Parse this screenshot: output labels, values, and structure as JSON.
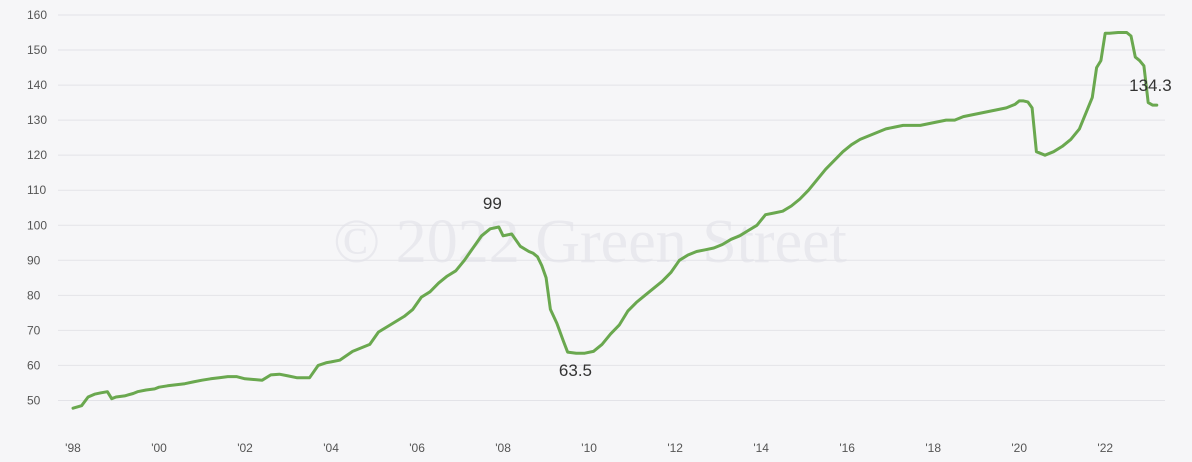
{
  "watermark": "© 2022 Green Street",
  "colors": {
    "line": "#6aa84f",
    "grid": "#e3e3e8",
    "background": "#f6f6f8"
  },
  "chart_data": {
    "type": "line",
    "title": "",
    "xlabel": "",
    "ylabel": "",
    "ylim": [
      45,
      160
    ],
    "xlim": [
      1998.0,
      2023.25
    ],
    "grid": "horizontal",
    "legend": "none",
    "yticks": [
      50,
      60,
      70,
      80,
      90,
      100,
      110,
      120,
      130,
      140,
      150,
      160
    ],
    "xticks": [
      {
        "value": 1998,
        "label": "'98"
      },
      {
        "value": 2000,
        "label": "'00"
      },
      {
        "value": 2002,
        "label": "'02"
      },
      {
        "value": 2004,
        "label": "'04"
      },
      {
        "value": 2006,
        "label": "'06"
      },
      {
        "value": 2008,
        "label": "'08"
      },
      {
        "value": 2010,
        "label": "'10"
      },
      {
        "value": 2012,
        "label": "'12"
      },
      {
        "value": 2014,
        "label": "'14"
      },
      {
        "value": 2016,
        "label": "'16"
      },
      {
        "value": 2018,
        "label": "'18"
      },
      {
        "value": 2020,
        "label": "'20"
      },
      {
        "value": 2022,
        "label": "'22"
      }
    ],
    "series": [
      {
        "x": [
          1998.0,
          1998.2,
          1998.35,
          1998.5,
          1998.65,
          1998.8,
          1998.9,
          1999.0,
          1999.2,
          1999.4,
          1999.5,
          1999.7,
          1999.9,
          2000.0,
          2000.2,
          2000.4,
          2000.6,
          2000.8,
          2001.0,
          2001.2,
          2001.4,
          2001.6,
          2001.8,
          2002.0,
          2002.2,
          2002.4,
          2002.6,
          2002.8,
          2003.0,
          2003.2,
          2003.5,
          2003.7,
          2003.9,
          2004.0,
          2004.2,
          2004.5,
          2004.7,
          2004.9,
          2005.1,
          2005.3,
          2005.5,
          2005.7,
          2005.9,
          2006.1,
          2006.3,
          2006.5,
          2006.7,
          2006.9,
          2007.1,
          2007.3,
          2007.5,
          2007.6,
          2007.7,
          2007.9,
          2008.0,
          2008.2,
          2008.4,
          2008.6,
          2008.7,
          2008.8,
          2008.9,
          2009.0,
          2009.1,
          2009.25,
          2009.4,
          2009.5,
          2009.7,
          2009.9,
          2010.1,
          2010.3,
          2010.5,
          2010.7,
          2010.9,
          2011.1,
          2011.3,
          2011.5,
          2011.7,
          2011.9,
          2012.1,
          2012.3,
          2012.5,
          2012.7,
          2012.9,
          2013.1,
          2013.3,
          2013.5,
          2013.7,
          2013.9,
          2014.1,
          2014.3,
          2014.5,
          2014.7,
          2014.9,
          2015.1,
          2015.3,
          2015.5,
          2015.7,
          2015.9,
          2016.1,
          2016.3,
          2016.5,
          2016.7,
          2016.9,
          2017.1,
          2017.3,
          2017.5,
          2017.7,
          2017.9,
          2018.1,
          2018.3,
          2018.5,
          2018.7,
          2018.9,
          2019.1,
          2019.3,
          2019.5,
          2019.7,
          2019.9,
          2020.0,
          2020.1,
          2020.2,
          2020.3,
          2020.4,
          2020.6,
          2020.8,
          2021.0,
          2021.2,
          2021.4,
          2021.6,
          2021.7,
          2021.8,
          2021.9,
          2022.0,
          2022.1,
          2022.3,
          2022.5,
          2022.6,
          2022.7,
          2022.8,
          2022.9,
          2023.0,
          2023.1,
          2023.2
        ],
        "values": [
          47.8,
          48.5,
          51.0,
          51.8,
          52.2,
          52.5,
          50.5,
          51.0,
          51.3,
          52.0,
          52.5,
          53.0,
          53.3,
          53.8,
          54.2,
          54.5,
          54.8,
          55.3,
          55.8,
          56.2,
          56.5,
          56.8,
          56.8,
          56.2,
          56.0,
          55.8,
          57.3,
          57.5,
          57.0,
          56.5,
          56.5,
          60.0,
          60.8,
          61.0,
          61.5,
          64.0,
          65.0,
          66.0,
          69.5,
          71.0,
          72.5,
          74.0,
          76.0,
          79.5,
          81.0,
          83.5,
          85.5,
          87.0,
          90.0,
          93.5,
          97.0,
          98.0,
          99.0,
          99.5,
          97.0,
          97.5,
          94.0,
          92.5,
          92.0,
          91.0,
          88.5,
          85.0,
          76.0,
          72.0,
          67.0,
          63.8,
          63.5,
          63.5,
          64.0,
          66.0,
          69.0,
          71.5,
          75.5,
          78.0,
          80.0,
          82.0,
          84.0,
          86.5,
          90.0,
          91.5,
          92.5,
          93.0,
          93.5,
          94.5,
          96.0,
          97.0,
          98.5,
          100.0,
          103.0,
          103.5,
          104.0,
          105.5,
          107.5,
          110.0,
          113.0,
          116.0,
          118.5,
          121.0,
          123.0,
          124.5,
          125.5,
          126.5,
          127.5,
          128.0,
          128.5,
          128.5,
          128.5,
          129.0,
          129.5,
          130.0,
          130.0,
          131.0,
          131.5,
          132.0,
          132.5,
          133.0,
          133.5,
          134.5,
          135.5,
          135.5,
          135.2,
          133.5,
          121.0,
          120.0,
          121.0,
          122.5,
          124.5,
          127.5,
          133.5,
          136.5,
          145.0,
          147.0,
          154.8,
          154.8,
          155.0,
          155.0,
          154.0,
          148.0,
          147.0,
          145.5,
          135.0,
          134.3,
          134.3
        ]
      }
    ],
    "annotations": [
      {
        "x": 2007.75,
        "y": 99,
        "label": "99"
      },
      {
        "x": 2009.45,
        "y": 63.5,
        "label": "63.5"
      },
      {
        "x": 2023.05,
        "y": 134.3,
        "label": "134.3"
      }
    ]
  }
}
